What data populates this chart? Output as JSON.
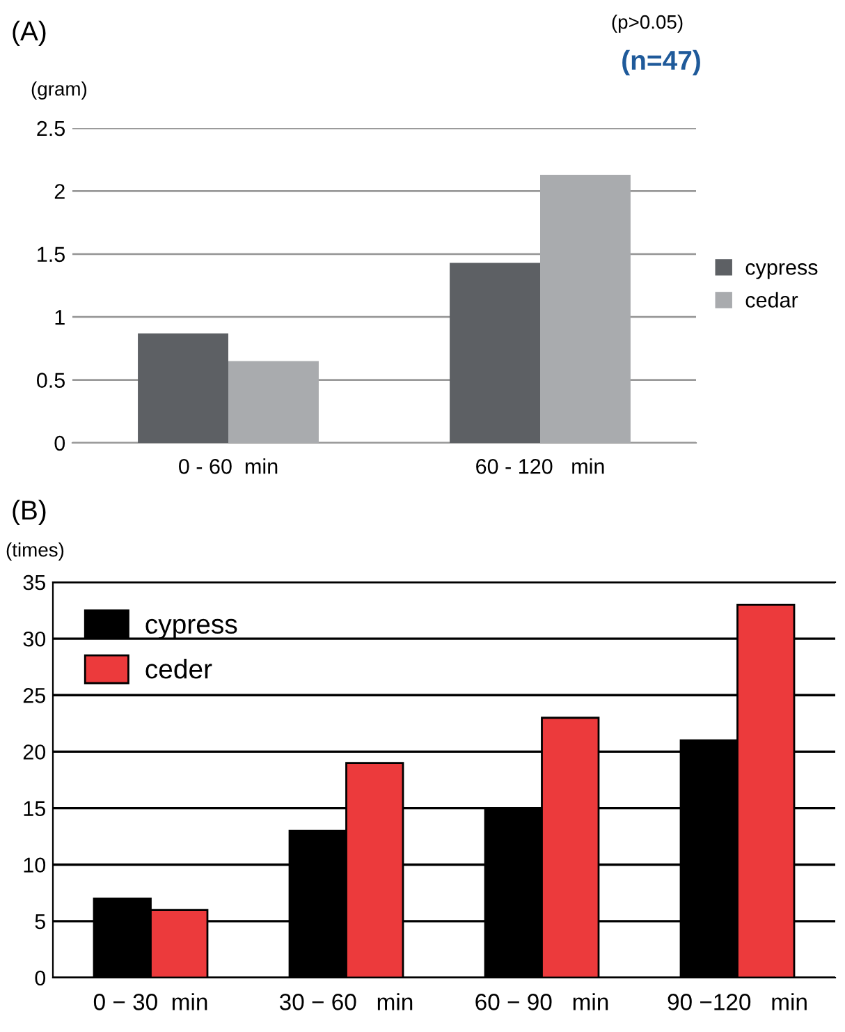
{
  "chart_data": [
    {
      "type": "bar",
      "title": "(A)",
      "ylabel": "(gram)",
      "annotations": [
        "(p>0.05)",
        "(n=47)"
      ],
      "categories": [
        "0 - 60  min",
        "60 - 120   min"
      ],
      "series": [
        {
          "name": "cypress",
          "color": "#5d6064",
          "values": [
            0.87,
            1.43
          ]
        },
        {
          "name": "cedar",
          "color": "#a9abae",
          "values": [
            0.65,
            2.13
          ]
        }
      ],
      "ylim": [
        0,
        2.5
      ],
      "yticks": [
        0,
        0.5,
        1,
        1.5,
        2,
        2.5
      ],
      "grid": "y",
      "legend": "right"
    },
    {
      "type": "bar",
      "title": "(B)",
      "ylabel": "(times)",
      "categories": [
        "0 − 30  min",
        "30 − 60   min",
        "60 − 90   min",
        "90 −120   min"
      ],
      "series": [
        {
          "name": "cypress",
          "color": "#000000",
          "values": [
            7,
            13,
            15,
            21
          ]
        },
        {
          "name": "ceder",
          "color": "#ec3a3c",
          "values": [
            6,
            19,
            23,
            33
          ]
        }
      ],
      "ylim": [
        0,
        35
      ],
      "yticks": [
        0,
        5,
        10,
        15,
        20,
        25,
        30,
        35
      ],
      "grid": "y",
      "legend": "top left"
    }
  ]
}
